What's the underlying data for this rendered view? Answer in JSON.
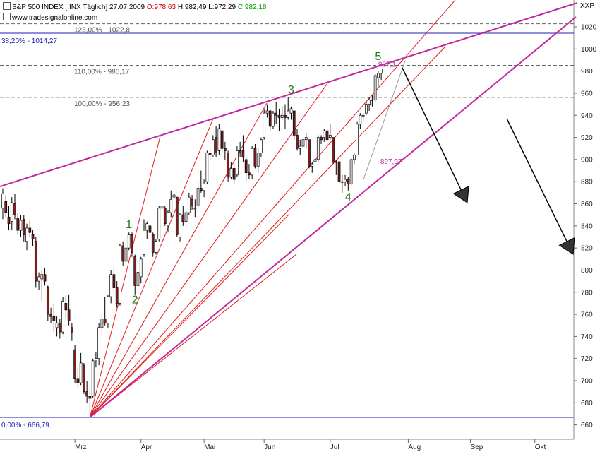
{
  "header": {
    "line1": {
      "symbol": "S&P 500 INDEX [.INX Täglich]",
      "date": "27.07.2009",
      "open": "O:978,63",
      "high": "H:982,49",
      "low": "L:972,29",
      "close": "C:982,18"
    },
    "line2": "www.tradesignalonline.com",
    "corner_label": "XXP"
  },
  "colors": {
    "open_text": "#cc0000",
    "close_text": "#009900",
    "channel": "#c0289c",
    "fan": "#e31b1b",
    "fib_blue": "#1c1cb4",
    "fib_gray": "#555555",
    "wave": "#1a7a1a",
    "candle_up": "#ffffff",
    "candle_down": "#7a1e1e",
    "arrow": "#000000"
  },
  "chart_data": {
    "type": "candlestick",
    "title": "S&P 500 INDEX [.INX Täglich]",
    "y_axis": {
      "ticks": [
        660,
        680,
        700,
        720,
        740,
        760,
        780,
        800,
        820,
        840,
        860,
        880,
        900,
        920,
        940,
        960,
        980,
        1000,
        1020
      ],
      "range": [
        650,
        1032
      ],
      "side": "right"
    },
    "x_axis": {
      "ticks": [
        "Mrz",
        "Apr",
        "Mai",
        "Jun",
        "Jul",
        "Aug",
        "Sep",
        "Okt"
      ]
    },
    "levels": [
      {
        "label": "123,00% - 1022,8",
        "value": 1022.8,
        "style": "gray-dashed"
      },
      {
        "label": "38,20% - 1014,27",
        "value": 1014.27,
        "style": "blue-solid"
      },
      {
        "label": "110,00% - 985,17",
        "value": 985.17,
        "style": "gray-dashed"
      },
      {
        "label": "100,00% - 956,23",
        "value": 956.23,
        "style": "gray-dashed"
      },
      {
        "label": "0,00% - 666,79",
        "value": 666.79,
        "style": "blue-solid"
      }
    ],
    "wave_labels": [
      {
        "text": "1",
        "date": "2009-03-26",
        "price": 838
      },
      {
        "text": "2",
        "date": "2009-03-30",
        "price": 770
      },
      {
        "text": "3",
        "date": "2009-06-12",
        "price": 960
      },
      {
        "text": "4",
        "date": "2009-07-10",
        "price": 863
      },
      {
        "text": "5",
        "date": "2009-07-24",
        "price": 990
      }
    ],
    "annotations": [
      {
        "text": "987,1",
        "date": "2009-07-24",
        "price": 984
      },
      {
        "text": "897,97",
        "date": "2009-07-20",
        "price": 896
      }
    ],
    "candles": [
      {
        "date": "2009-01-26",
        "o": 856,
        "h": 874,
        "l": 846,
        "c": 869
      },
      {
        "date": "2009-01-27",
        "o": 862,
        "h": 868,
        "l": 848,
        "c": 852
      },
      {
        "date": "2009-01-28",
        "o": 848,
        "h": 858,
        "l": 836,
        "c": 842
      },
      {
        "date": "2009-01-29",
        "o": 844,
        "h": 866,
        "l": 836,
        "c": 861
      },
      {
        "date": "2009-01-30",
        "o": 860,
        "h": 869,
        "l": 846,
        "c": 850
      },
      {
        "date": "2009-02-02",
        "o": 847,
        "h": 852,
        "l": 832,
        "c": 836
      },
      {
        "date": "2009-02-03",
        "o": 836,
        "h": 850,
        "l": 830,
        "c": 845
      },
      {
        "date": "2009-02-04",
        "o": 846,
        "h": 850,
        "l": 826,
        "c": 832
      },
      {
        "date": "2009-02-05",
        "o": 826,
        "h": 842,
        "l": 818,
        "c": 838
      },
      {
        "date": "2009-02-06",
        "o": 838,
        "h": 845,
        "l": 830,
        "c": 834
      },
      {
        "date": "2009-02-09",
        "o": 832,
        "h": 836,
        "l": 822,
        "c": 828
      },
      {
        "date": "2009-02-10",
        "o": 826,
        "h": 830,
        "l": 784,
        "c": 790
      },
      {
        "date": "2009-02-11",
        "o": 790,
        "h": 798,
        "l": 782,
        "c": 794
      },
      {
        "date": "2009-02-12",
        "o": 792,
        "h": 800,
        "l": 772,
        "c": 796
      },
      {
        "date": "2009-02-13",
        "o": 796,
        "h": 802,
        "l": 786,
        "c": 790
      },
      {
        "date": "2009-02-17",
        "o": 784,
        "h": 786,
        "l": 754,
        "c": 760
      },
      {
        "date": "2009-02-18",
        "o": 760,
        "h": 766,
        "l": 752,
        "c": 758
      },
      {
        "date": "2009-02-19",
        "o": 758,
        "h": 770,
        "l": 744,
        "c": 754
      },
      {
        "date": "2009-02-20",
        "o": 748,
        "h": 758,
        "l": 740,
        "c": 752
      },
      {
        "date": "2009-02-23",
        "o": 752,
        "h": 756,
        "l": 738,
        "c": 744
      },
      {
        "date": "2009-02-24",
        "o": 744,
        "h": 776,
        "l": 742,
        "c": 772
      },
      {
        "date": "2009-02-25",
        "o": 770,
        "h": 778,
        "l": 756,
        "c": 764
      },
      {
        "date": "2009-02-26",
        "o": 764,
        "h": 778,
        "l": 750,
        "c": 754
      },
      {
        "date": "2009-02-27",
        "o": 748,
        "h": 752,
        "l": 736,
        "c": 744
      },
      {
        "date": "2009-03-02",
        "o": 728,
        "h": 732,
        "l": 698,
        "c": 702
      },
      {
        "date": "2009-03-03",
        "o": 702,
        "h": 712,
        "l": 694,
        "c": 698
      },
      {
        "date": "2009-03-04",
        "o": 698,
        "h": 725,
        "l": 696,
        "c": 716
      },
      {
        "date": "2009-03-05",
        "o": 714,
        "h": 716,
        "l": 688,
        "c": 690
      },
      {
        "date": "2009-03-06",
        "o": 690,
        "h": 700,
        "l": 680,
        "c": 686
      },
      {
        "date": "2009-03-09",
        "o": 686,
        "h": 694,
        "l": 672,
        "c": 684
      },
      {
        "date": "2009-03-10",
        "o": 686,
        "h": 720,
        "l": 684,
        "c": 718
      },
      {
        "date": "2009-03-11",
        "o": 718,
        "h": 726,
        "l": 712,
        "c": 720
      },
      {
        "date": "2009-03-12",
        "o": 720,
        "h": 752,
        "l": 714,
        "c": 748
      },
      {
        "date": "2009-03-13",
        "o": 748,
        "h": 760,
        "l": 742,
        "c": 756
      },
      {
        "date": "2009-03-16",
        "o": 756,
        "h": 776,
        "l": 750,
        "c": 752
      },
      {
        "date": "2009-03-17",
        "o": 752,
        "h": 778,
        "l": 748,
        "c": 776
      },
      {
        "date": "2009-03-18",
        "o": 776,
        "h": 800,
        "l": 770,
        "c": 796
      },
      {
        "date": "2009-03-19",
        "o": 796,
        "h": 804,
        "l": 780,
        "c": 784
      },
      {
        "date": "2009-03-20",
        "o": 784,
        "h": 790,
        "l": 766,
        "c": 770
      },
      {
        "date": "2009-03-23",
        "o": 770,
        "h": 824,
        "l": 768,
        "c": 822
      },
      {
        "date": "2009-03-24",
        "o": 822,
        "h": 826,
        "l": 804,
        "c": 808
      },
      {
        "date": "2009-03-25",
        "o": 808,
        "h": 830,
        "l": 800,
        "c": 820
      },
      {
        "date": "2009-03-26",
        "o": 820,
        "h": 834,
        "l": 818,
        "c": 832
      },
      {
        "date": "2009-03-27",
        "o": 832,
        "h": 834,
        "l": 812,
        "c": 816
      },
      {
        "date": "2009-03-30",
        "o": 812,
        "h": 814,
        "l": 778,
        "c": 786
      },
      {
        "date": "2009-03-31",
        "o": 786,
        "h": 808,
        "l": 784,
        "c": 798
      },
      {
        "date": "2009-04-01",
        "o": 794,
        "h": 812,
        "l": 788,
        "c": 810
      },
      {
        "date": "2009-04-02",
        "o": 814,
        "h": 846,
        "l": 812,
        "c": 836
      },
      {
        "date": "2009-04-03",
        "o": 836,
        "h": 844,
        "l": 828,
        "c": 842
      },
      {
        "date": "2009-04-06",
        "o": 840,
        "h": 842,
        "l": 824,
        "c": 834
      },
      {
        "date": "2009-04-07",
        "o": 832,
        "h": 834,
        "l": 812,
        "c": 816
      },
      {
        "date": "2009-04-08",
        "o": 816,
        "h": 828,
        "l": 814,
        "c": 826
      },
      {
        "date": "2009-04-09",
        "o": 828,
        "h": 858,
        "l": 826,
        "c": 856
      },
      {
        "date": "2009-04-13",
        "o": 856,
        "h": 862,
        "l": 846,
        "c": 858
      },
      {
        "date": "2009-04-14",
        "o": 856,
        "h": 858,
        "l": 840,
        "c": 842
      },
      {
        "date": "2009-04-15",
        "o": 840,
        "h": 854,
        "l": 834,
        "c": 852
      },
      {
        "date": "2009-04-16",
        "o": 852,
        "h": 872,
        "l": 848,
        "c": 864
      },
      {
        "date": "2009-04-17",
        "o": 866,
        "h": 876,
        "l": 860,
        "c": 868
      },
      {
        "date": "2009-04-20",
        "o": 866,
        "h": 866,
        "l": 830,
        "c": 832
      },
      {
        "date": "2009-04-21",
        "o": 830,
        "h": 852,
        "l": 826,
        "c": 850
      },
      {
        "date": "2009-04-22",
        "o": 850,
        "h": 858,
        "l": 840,
        "c": 844
      },
      {
        "date": "2009-04-23",
        "o": 844,
        "h": 854,
        "l": 838,
        "c": 852
      },
      {
        "date": "2009-04-24",
        "o": 852,
        "h": 870,
        "l": 850,
        "c": 866
      },
      {
        "date": "2009-04-27",
        "o": 864,
        "h": 868,
        "l": 854,
        "c": 858
      },
      {
        "date": "2009-04-28",
        "o": 856,
        "h": 864,
        "l": 848,
        "c": 856
      },
      {
        "date": "2009-04-29",
        "o": 858,
        "h": 880,
        "l": 856,
        "c": 874
      },
      {
        "date": "2009-04-30",
        "o": 874,
        "h": 890,
        "l": 870,
        "c": 872
      },
      {
        "date": "2009-05-01",
        "o": 872,
        "h": 882,
        "l": 866,
        "c": 878
      },
      {
        "date": "2009-05-04",
        "o": 880,
        "h": 908,
        "l": 878,
        "c": 906
      },
      {
        "date": "2009-05-05",
        "o": 906,
        "h": 910,
        "l": 900,
        "c": 904
      },
      {
        "date": "2009-05-06",
        "o": 904,
        "h": 922,
        "l": 902,
        "c": 918
      },
      {
        "date": "2009-05-07",
        "o": 920,
        "h": 930,
        "l": 902,
        "c": 906
      },
      {
        "date": "2009-05-08",
        "o": 908,
        "h": 932,
        "l": 904,
        "c": 928
      },
      {
        "date": "2009-05-11",
        "o": 926,
        "h": 928,
        "l": 906,
        "c": 910
      },
      {
        "date": "2009-05-12",
        "o": 910,
        "h": 916,
        "l": 900,
        "c": 908
      },
      {
        "date": "2009-05-13",
        "o": 906,
        "h": 908,
        "l": 880,
        "c": 884
      },
      {
        "date": "2009-05-14",
        "o": 884,
        "h": 898,
        "l": 882,
        "c": 892
      },
      {
        "date": "2009-05-15",
        "o": 892,
        "h": 896,
        "l": 878,
        "c": 882
      },
      {
        "date": "2009-05-18",
        "o": 886,
        "h": 912,
        "l": 884,
        "c": 908
      },
      {
        "date": "2009-05-19",
        "o": 908,
        "h": 916,
        "l": 902,
        "c": 906
      },
      {
        "date": "2009-05-20",
        "o": 908,
        "h": 922,
        "l": 898,
        "c": 902
      },
      {
        "date": "2009-05-21",
        "o": 900,
        "h": 902,
        "l": 880,
        "c": 888
      },
      {
        "date": "2009-05-22",
        "o": 888,
        "h": 896,
        "l": 882,
        "c": 886
      },
      {
        "date": "2009-05-26",
        "o": 886,
        "h": 912,
        "l": 882,
        "c": 910
      },
      {
        "date": "2009-05-27",
        "o": 910,
        "h": 914,
        "l": 892,
        "c": 894
      },
      {
        "date": "2009-05-28",
        "o": 894,
        "h": 910,
        "l": 888,
        "c": 906
      },
      {
        "date": "2009-05-29",
        "o": 906,
        "h": 920,
        "l": 902,
        "c": 918
      },
      {
        "date": "2009-06-01",
        "o": 920,
        "h": 946,
        "l": 918,
        "c": 942
      },
      {
        "date": "2009-06-02",
        "o": 942,
        "h": 950,
        "l": 938,
        "c": 944
      },
      {
        "date": "2009-06-03",
        "o": 944,
        "h": 946,
        "l": 926,
        "c": 930
      },
      {
        "date": "2009-06-04",
        "o": 930,
        "h": 944,
        "l": 928,
        "c": 942
      },
      {
        "date": "2009-06-05",
        "o": 942,
        "h": 952,
        "l": 932,
        "c": 940
      },
      {
        "date": "2009-06-08",
        "o": 940,
        "h": 946,
        "l": 926,
        "c": 938
      },
      {
        "date": "2009-06-09",
        "o": 938,
        "h": 948,
        "l": 936,
        "c": 940
      },
      {
        "date": "2009-06-10",
        "o": 940,
        "h": 950,
        "l": 928,
        "c": 938
      },
      {
        "date": "2009-06-11",
        "o": 938,
        "h": 956,
        "l": 936,
        "c": 944
      },
      {
        "date": "2009-06-12",
        "o": 942,
        "h": 948,
        "l": 936,
        "c": 946
      },
      {
        "date": "2009-06-15",
        "o": 944,
        "h": 944,
        "l": 918,
        "c": 922
      },
      {
        "date": "2009-06-16",
        "o": 922,
        "h": 928,
        "l": 908,
        "c": 910
      },
      {
        "date": "2009-06-17",
        "o": 910,
        "h": 918,
        "l": 904,
        "c": 912
      },
      {
        "date": "2009-06-18",
        "o": 912,
        "h": 922,
        "l": 908,
        "c": 918
      },
      {
        "date": "2009-06-19",
        "o": 918,
        "h": 924,
        "l": 910,
        "c": 920
      },
      {
        "date": "2009-06-22",
        "o": 918,
        "h": 918,
        "l": 892,
        "c": 894
      },
      {
        "date": "2009-06-23",
        "o": 894,
        "h": 898,
        "l": 888,
        "c": 896
      },
      {
        "date": "2009-06-24",
        "o": 898,
        "h": 910,
        "l": 896,
        "c": 900
      },
      {
        "date": "2009-06-25",
        "o": 900,
        "h": 922,
        "l": 898,
        "c": 920
      },
      {
        "date": "2009-06-26",
        "o": 920,
        "h": 922,
        "l": 914,
        "c": 918
      },
      {
        "date": "2009-06-29",
        "o": 920,
        "h": 928,
        "l": 916,
        "c": 926
      },
      {
        "date": "2009-06-30",
        "o": 926,
        "h": 930,
        "l": 912,
        "c": 918
      },
      {
        "date": "2009-07-01",
        "o": 920,
        "h": 932,
        "l": 918,
        "c": 922
      },
      {
        "date": "2009-07-02",
        "o": 920,
        "h": 920,
        "l": 896,
        "c": 898
      },
      {
        "date": "2009-07-06",
        "o": 898,
        "h": 900,
        "l": 886,
        "c": 898
      },
      {
        "date": "2009-07-07",
        "o": 898,
        "h": 900,
        "l": 878,
        "c": 880
      },
      {
        "date": "2009-07-08",
        "o": 880,
        "h": 886,
        "l": 870,
        "c": 880
      },
      {
        "date": "2009-07-09",
        "o": 880,
        "h": 886,
        "l": 876,
        "c": 882
      },
      {
        "date": "2009-07-10",
        "o": 882,
        "h": 884,
        "l": 872,
        "c": 878
      },
      {
        "date": "2009-07-13",
        "o": 878,
        "h": 902,
        "l": 876,
        "c": 900
      },
      {
        "date": "2009-07-14",
        "o": 900,
        "h": 906,
        "l": 896,
        "c": 904
      },
      {
        "date": "2009-07-15",
        "o": 904,
        "h": 934,
        "l": 904,
        "c": 932
      },
      {
        "date": "2009-07-16",
        "o": 932,
        "h": 942,
        "l": 928,
        "c": 940
      },
      {
        "date": "2009-07-17",
        "o": 940,
        "h": 942,
        "l": 934,
        "c": 940
      },
      {
        "date": "2009-07-20",
        "o": 942,
        "h": 952,
        "l": 940,
        "c": 950
      },
      {
        "date": "2009-07-21",
        "o": 950,
        "h": 956,
        "l": 944,
        "c": 954
      },
      {
        "date": "2009-07-22",
        "o": 954,
        "h": 958,
        "l": 948,
        "c": 954
      },
      {
        "date": "2009-07-23",
        "o": 954,
        "h": 978,
        "l": 952,
        "c": 976
      },
      {
        "date": "2009-07-24",
        "o": 974,
        "h": 980,
        "l": 966,
        "c": 978
      },
      {
        "date": "2009-07-27",
        "o": 978,
        "h": 982,
        "l": 972,
        "c": 982
      }
    ]
  }
}
